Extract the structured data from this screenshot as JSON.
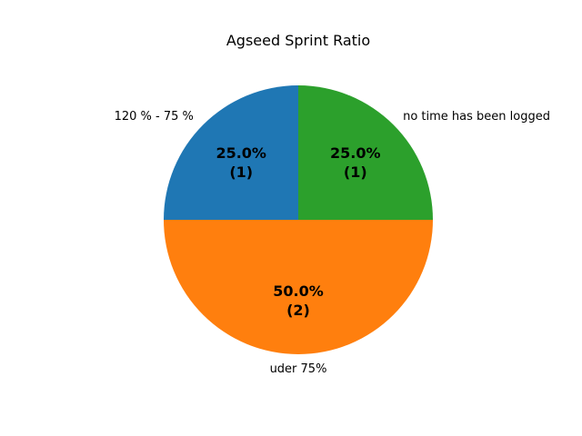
{
  "chart_data": {
    "type": "pie",
    "title": "Agseed Sprint Ratio",
    "categories": [
      "120 % - 75 %",
      "uder 75%",
      "no time has been logged"
    ],
    "values": [
      1,
      2,
      1
    ],
    "percent_labels": [
      "25.0%",
      "50.0%",
      "25.0%"
    ],
    "count_labels": [
      "(1)",
      "(2)",
      "(1)"
    ],
    "colors": [
      "#1f77b4",
      "#ff7f0e",
      "#2ca02c"
    ],
    "start_angle_deg": 90,
    "direction": "counterclockwise",
    "legend": "none"
  }
}
